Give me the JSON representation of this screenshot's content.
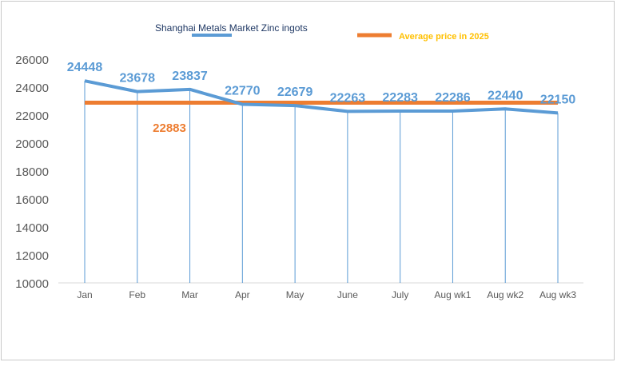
{
  "chart_data": {
    "type": "line",
    "categories": [
      "Jan",
      "Feb",
      "Mar",
      "Apr",
      "May",
      "June",
      "July",
      "Aug wk1",
      "Aug wk2",
      "Aug wk3"
    ],
    "series": [
      {
        "name": "Shanghai Metals Market Zinc ingots",
        "values": [
          24448,
          23678,
          23837,
          22770,
          22679,
          22263,
          22283,
          22286,
          22440,
          22150
        ],
        "color": "#5b9bd5"
      },
      {
        "name": "Average price in 2025",
        "values": [
          22883,
          22883,
          22883,
          22883,
          22883,
          22883,
          22883,
          22883,
          22883,
          22883
        ],
        "color": "#ed7d31",
        "label_text": "22883"
      }
    ],
    "data_labels": [
      "24448",
      "23678",
      "23837",
      "22770",
      "22679",
      "22263",
      "22283",
      "22286",
      "22440",
      "22150"
    ],
    "ylim": [
      10000,
      26000
    ],
    "yticks": [
      "10000",
      "12000",
      "14000",
      "16000",
      "18000",
      "20000",
      "22000",
      "24000",
      "26000"
    ],
    "title": "",
    "xlabel": "",
    "ylabel": "",
    "legend_position": "top",
    "legend_text_color": "#ffc000",
    "legend_series_text_color": "#1f3864",
    "avg_label_color": "#ed7d31",
    "data_label_color": "#5b9bd5",
    "drop_line_color": "#5b9bd5"
  }
}
